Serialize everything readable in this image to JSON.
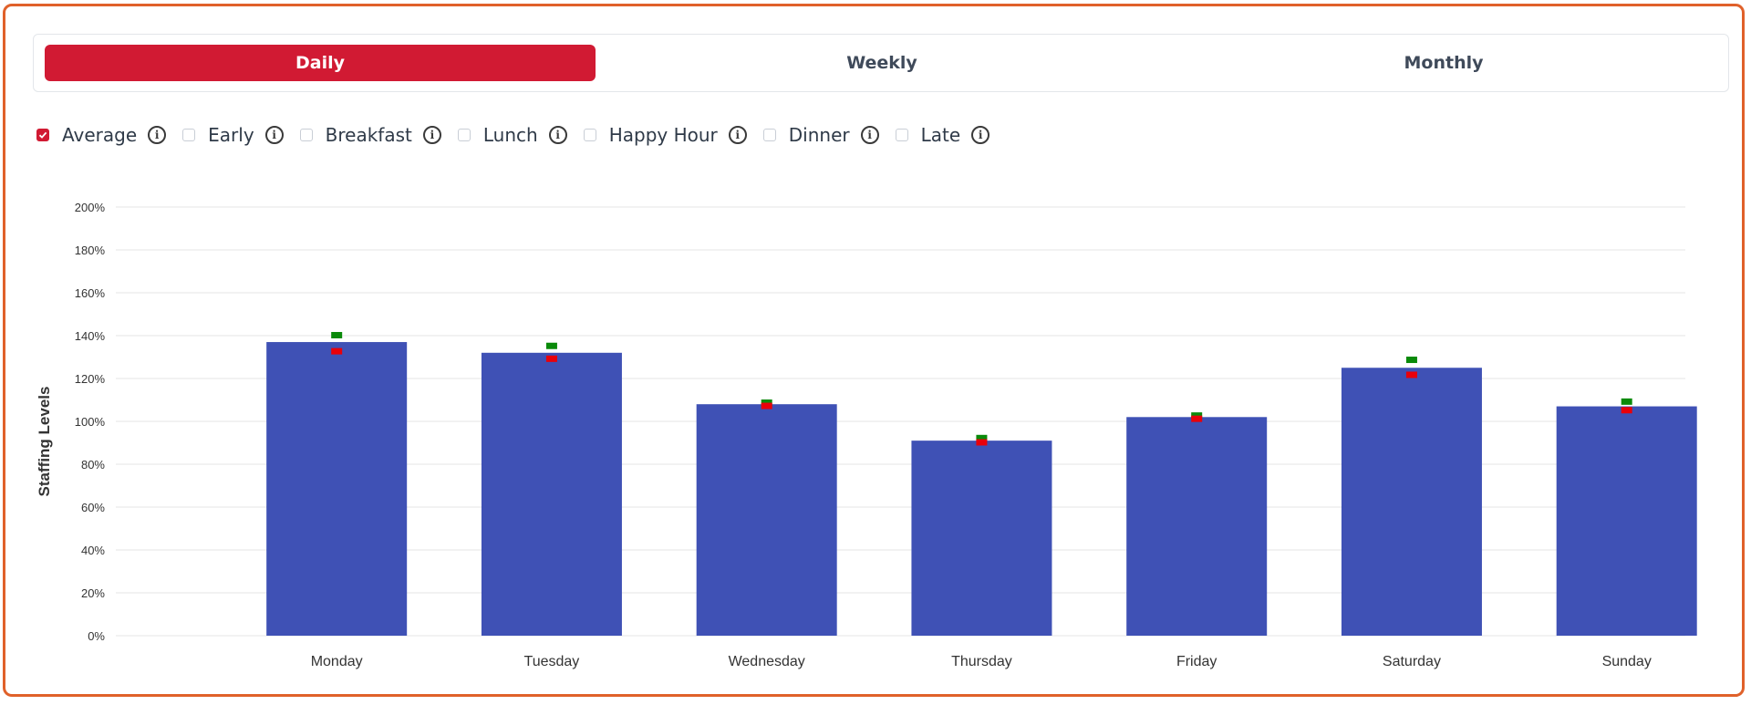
{
  "tabs": [
    {
      "label": "Daily",
      "active": true
    },
    {
      "label": "Weekly",
      "active": false
    },
    {
      "label": "Monthly",
      "active": false
    }
  ],
  "filters": [
    {
      "label": "Average",
      "checked": true
    },
    {
      "label": "Early",
      "checked": false
    },
    {
      "label": "Breakfast",
      "checked": false
    },
    {
      "label": "Lunch",
      "checked": false
    },
    {
      "label": "Happy Hour",
      "checked": false
    },
    {
      "label": "Dinner",
      "checked": false
    },
    {
      "label": "Late",
      "checked": false
    }
  ],
  "info_icon_glyph": "i",
  "colors": {
    "accent": "#d11a33",
    "bar": "#3f51b5",
    "marker_high": "#0a8a0a",
    "marker_low": "#e8000a",
    "frame": "#e0612a"
  },
  "chart_data": {
    "type": "bar",
    "ylabel": "Staffing Levels",
    "categories": [
      "Monday",
      "Tuesday",
      "Wednesday",
      "Thursday",
      "Friday",
      "Saturday",
      "Sunday"
    ],
    "series": [
      {
        "values": [
          137,
          132,
          108,
          91,
          102,
          125,
          107
        ]
      }
    ],
    "markers_high": [
      140,
      135,
      108.5,
      92,
      102.5,
      128.5,
      109
    ],
    "markers_low": [
      132.5,
      129,
      107,
      90,
      101,
      121.5,
      105
    ],
    "ylim": [
      0,
      200
    ],
    "yticks": [
      0,
      20,
      40,
      60,
      80,
      100,
      120,
      140,
      160,
      180,
      200
    ],
    "ytick_suffix": "%",
    "grid": true
  }
}
